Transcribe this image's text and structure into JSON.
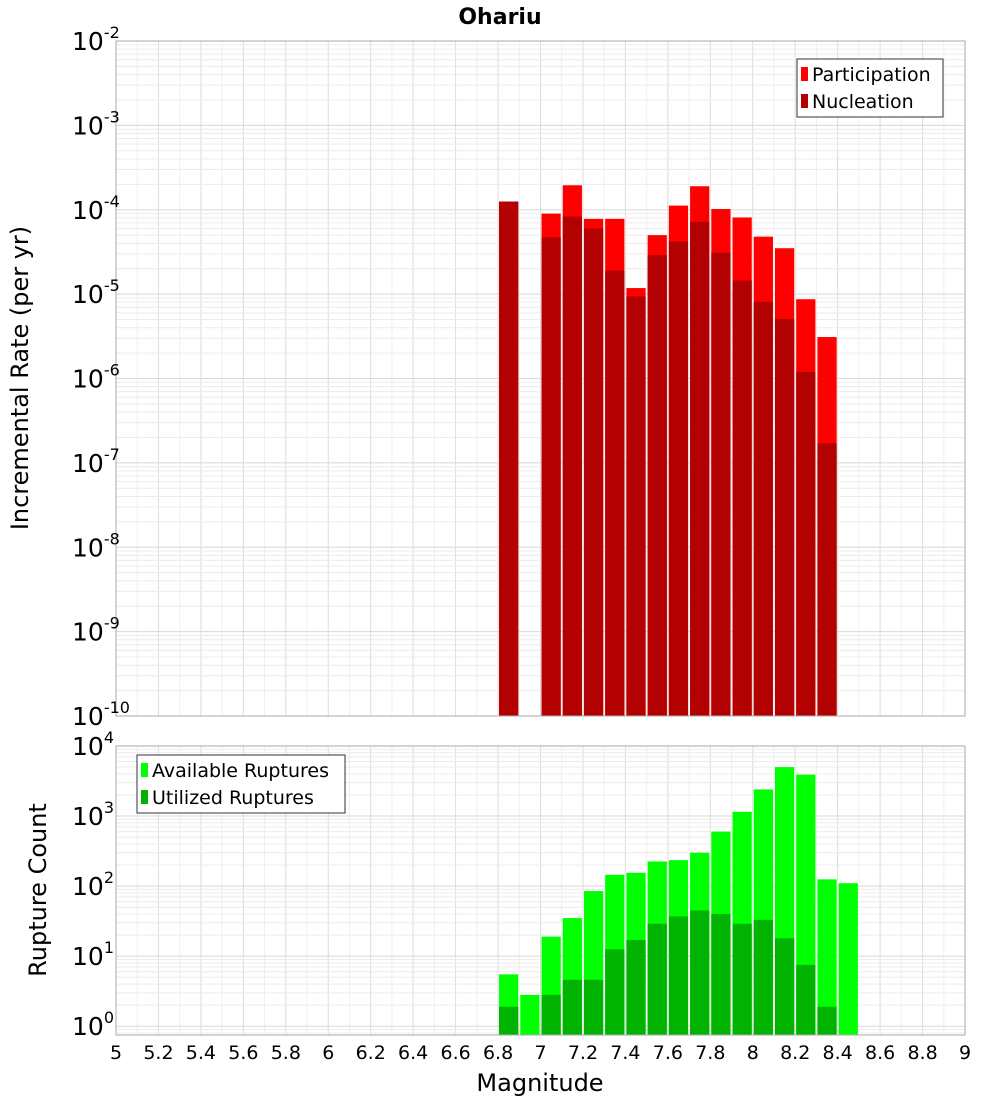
{
  "chart_data": [
    {
      "type": "bar",
      "title": "Ohariu",
      "ylabel": "Incremental Rate (per yr)",
      "xlabel": "",
      "yscale": "log",
      "ylim": [
        1e-10,
        0.01
      ],
      "xlim": [
        5,
        9
      ],
      "bin_width": 0.1,
      "legend_position": "top-right",
      "grid": true,
      "x": [
        6.85,
        7.05,
        7.15,
        7.25,
        7.35,
        7.45,
        7.55,
        7.65,
        7.75,
        7.85,
        7.95,
        8.05,
        8.15,
        8.25,
        8.35
      ],
      "series": [
        {
          "name": "Participation",
          "color": "#ff0000",
          "values": [
            0.000125,
            9e-05,
            0.000195,
            7.8e-05,
            7.8e-05,
            1.18e-05,
            5e-05,
            0.000112,
            0.00019,
            0.000102,
            8.1e-05,
            4.8e-05,
            3.5e-05,
            8.7e-06,
            3.1e-06
          ]
        },
        {
          "name": "Nucleation",
          "color": "#b30000",
          "values": [
            0.000125,
            4.7e-05,
            8.3e-05,
            6e-05,
            1.9e-05,
            9.4e-06,
            2.9e-05,
            4.2e-05,
            7.2e-05,
            3.1e-05,
            1.45e-05,
            8.1e-06,
            5.1e-06,
            1.2e-06,
            1.7e-07
          ]
        }
      ],
      "tick_exponents": [
        -10,
        -9,
        -8,
        -7,
        -6,
        -5,
        -4,
        -3,
        -2
      ]
    },
    {
      "type": "bar",
      "title": "",
      "ylabel": "Rupture Count",
      "xlabel": "Magnitude",
      "yscale": "log",
      "ylim": [
        0.75,
        10000
      ],
      "xlim": [
        5,
        9
      ],
      "bin_width": 0.1,
      "legend_position": "top-left",
      "grid": true,
      "x": [
        6.85,
        6.95,
        7.05,
        7.15,
        7.25,
        7.35,
        7.45,
        7.55,
        7.65,
        7.75,
        7.85,
        7.95,
        8.05,
        8.15,
        8.25,
        8.35,
        8.45
      ],
      "series": [
        {
          "name": "Available Ruptures",
          "color": "#00ff00",
          "values": [
            5.5,
            2.8,
            19,
            35,
            85,
            145,
            155,
            225,
            235,
            300,
            600,
            1150,
            2400,
            5000,
            3900,
            125,
            110
          ]
        },
        {
          "name": "Utilized Ruptures",
          "color": "#00b300",
          "values": [
            1.9,
            0,
            2.8,
            4.6,
            4.6,
            12.5,
            17,
            29,
            37,
            45,
            40,
            29,
            33,
            18,
            7.5,
            1.9,
            0
          ]
        }
      ],
      "tick_exponents": [
        0,
        1,
        2,
        3,
        4
      ],
      "x_ticks": [
        "5",
        "5.2",
        "5.4",
        "5.6",
        "5.8",
        "6",
        "6.2",
        "6.4",
        "6.6",
        "6.8",
        "7",
        "7.2",
        "7.4",
        "7.6",
        "7.8",
        "8",
        "8.2",
        "8.4",
        "8.6",
        "8.8",
        "9"
      ]
    }
  ]
}
